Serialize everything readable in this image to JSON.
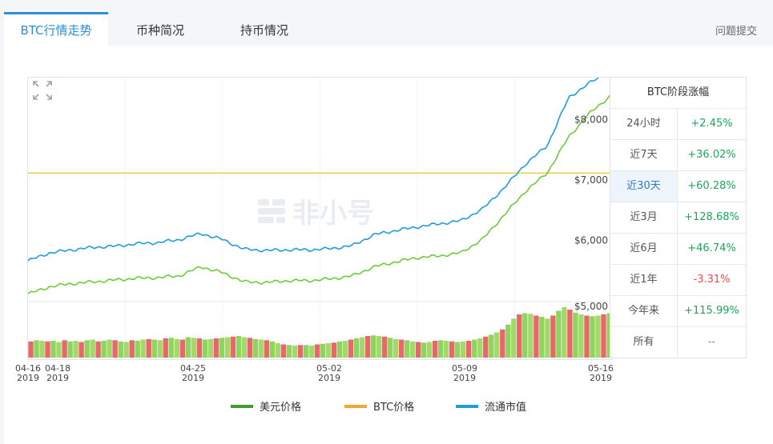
{
  "tabs": [
    {
      "label": "BTC行情走势",
      "active": true
    },
    {
      "label": "币种简况",
      "active": false
    },
    {
      "label": "持币情况",
      "active": false
    }
  ],
  "report_link": "问题提交",
  "watermark": "非小号",
  "chart_data": {
    "type": "line",
    "ylim": [
      5000,
      8600
    ],
    "y_ticks": [
      "$5,000",
      "$6,000",
      "$7,000",
      "$8,000"
    ],
    "x_ticks": [
      {
        "date": "04-16",
        "year": "2019"
      },
      {
        "date": "04-18",
        "year": "2019"
      },
      {
        "date": "04-25",
        "year": "2019"
      },
      {
        "date": "05-02",
        "year": "2019"
      },
      {
        "date": "05-09",
        "year": "2019"
      },
      {
        "date": "05-16",
        "year": "2019"
      }
    ],
    "reference_line": 7100,
    "series": [
      {
        "name": "美元价格",
        "color": "#6dcc3a",
        "values": [
          5100,
          5220,
          5270,
          5300,
          5330,
          5360,
          5370,
          5400,
          5550,
          5450,
          5300,
          5290,
          5320,
          5320,
          5350,
          5400,
          5550,
          5630,
          5700,
          5730,
          5780,
          6000,
          6400,
          6800,
          7100,
          7700,
          8100,
          8400
        ]
      },
      {
        "name": "流通市值",
        "color": "#1f9de0",
        "values": [
          5650,
          5780,
          5830,
          5870,
          5890,
          5930,
          5950,
          6000,
          6100,
          6000,
          5840,
          5820,
          5830,
          5830,
          5850,
          5900,
          6080,
          6150,
          6210,
          6260,
          6310,
          6500,
          6850,
          7250,
          7550,
          8350,
          8600,
          8800
        ]
      }
    ],
    "btc_price": {
      "name": "BTC价格",
      "color": "#f0b430"
    },
    "volume": [
      0.27,
      0.29,
      0.28,
      0.27,
      0.28,
      0.26,
      0.29,
      0.27,
      0.28,
      0.26,
      0.29,
      0.3,
      0.27,
      0.28,
      0.3,
      0.29,
      0.27,
      0.26,
      0.29,
      0.28,
      0.3,
      0.31,
      0.3,
      0.29,
      0.32,
      0.33,
      0.31,
      0.3,
      0.34,
      0.33,
      0.32,
      0.3,
      0.31,
      0.32,
      0.33,
      0.34,
      0.35,
      0.36,
      0.34,
      0.33,
      0.31,
      0.3,
      0.29,
      0.27,
      0.24,
      0.22,
      0.21,
      0.2,
      0.21,
      0.21,
      0.2,
      0.22,
      0.23,
      0.24,
      0.25,
      0.27,
      0.28,
      0.3,
      0.32,
      0.34,
      0.36,
      0.37,
      0.36,
      0.35,
      0.33,
      0.31,
      0.3,
      0.29,
      0.27,
      0.26,
      0.25,
      0.26,
      0.28,
      0.29,
      0.28,
      0.27,
      0.26,
      0.27,
      0.28,
      0.3,
      0.32,
      0.35,
      0.38,
      0.42,
      0.47,
      0.55,
      0.65,
      0.72,
      0.74,
      0.73,
      0.7,
      0.68,
      0.65,
      0.7,
      0.78,
      0.84,
      0.8,
      0.75,
      0.72,
      0.7,
      0.69,
      0.7,
      0.72,
      0.74
    ]
  },
  "legend": [
    {
      "label": "美元价格",
      "color": "#3f9b2e"
    },
    {
      "label": "BTC价格",
      "color": "#f0a830"
    },
    {
      "label": "流通市值",
      "color": "#1f9de0"
    }
  ],
  "stats": {
    "title": "BTC阶段涨幅",
    "rows": [
      {
        "label": "24小时",
        "value": "+2.45%",
        "tone": "pos"
      },
      {
        "label": "近7天",
        "value": "+36.02%",
        "tone": "pos"
      },
      {
        "label": "近30天",
        "value": "+60.28%",
        "tone": "pos",
        "highlight": true
      },
      {
        "label": "近3月",
        "value": "+128.68%",
        "tone": "pos"
      },
      {
        "label": "近6月",
        "value": "+46.74%",
        "tone": "pos"
      },
      {
        "label": "近1年",
        "value": "-3.31%",
        "tone": "neg"
      },
      {
        "label": "今年来",
        "value": "+115.99%",
        "tone": "pos"
      },
      {
        "label": "所有",
        "value": "--",
        "tone": "neu"
      }
    ]
  }
}
